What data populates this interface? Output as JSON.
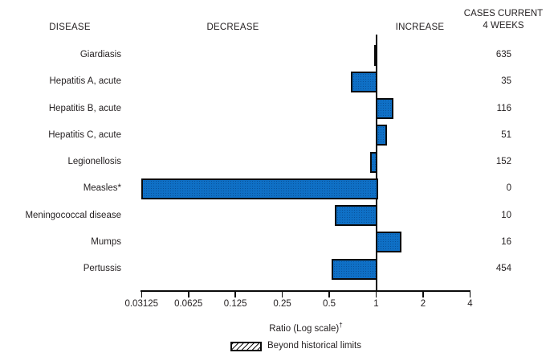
{
  "header": {
    "disease": "DISEASE",
    "decrease": "DECREASE",
    "increase": "INCREASE",
    "cases_line1": "CASES CURRENT",
    "cases_line2": "4 WEEKS"
  },
  "chart_data": {
    "type": "bar",
    "orientation": "horizontal",
    "scale": "log2",
    "title": "",
    "xlabel": "Ratio (Log scale)",
    "xlabel_superscript": "†",
    "axis": {
      "xlim": [
        0.03125,
        4
      ],
      "baseline_value": 1,
      "tick_labels": [
        "0.03125",
        "0.0625",
        "0.125",
        "0.25",
        "0.5",
        "1",
        "2",
        "4"
      ],
      "tick_values": [
        0.03125,
        0.0625,
        0.125,
        0.25,
        0.5,
        1,
        2,
        4
      ]
    },
    "rows": [
      {
        "disease": "Giardiasis",
        "ratio": 0.97,
        "cases": "635",
        "beyond_limits": false
      },
      {
        "disease": "Hepatitis A, acute",
        "ratio": 0.69,
        "cases": "35",
        "beyond_limits": false
      },
      {
        "disease": "Hepatitis B, acute",
        "ratio": 1.29,
        "cases": "116",
        "beyond_limits": false
      },
      {
        "disease": "Hepatitis C, acute",
        "ratio": 1.17,
        "cases": "51",
        "beyond_limits": false
      },
      {
        "disease": "Legionellosis",
        "ratio": 0.92,
        "cases": "152",
        "beyond_limits": false
      },
      {
        "disease": "Measles*",
        "ratio": 0.03125,
        "cases": "0",
        "beyond_limits": false
      },
      {
        "disease": "Meningococcal disease",
        "ratio": 0.54,
        "cases": "10",
        "beyond_limits": false
      },
      {
        "disease": "Mumps",
        "ratio": 1.44,
        "cases": "16",
        "beyond_limits": false
      },
      {
        "disease": "Pertussis",
        "ratio": 0.52,
        "cases": "454",
        "beyond_limits": false
      }
    ],
    "legend": {
      "label": "Beyond historical limits",
      "position": "bottom"
    }
  },
  "colors": {
    "bar_fill": "#0f70c6",
    "bar_border": "#0b0b0b",
    "text": "#231f20",
    "background": "#ffffff"
  }
}
